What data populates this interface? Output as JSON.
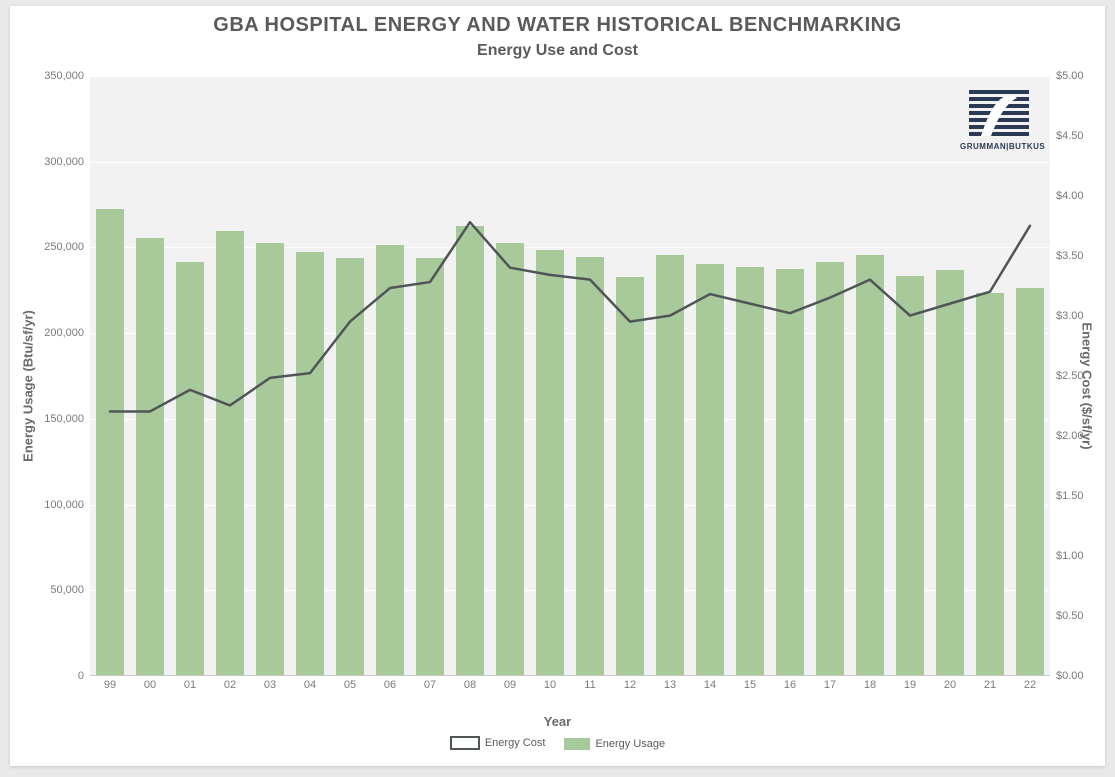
{
  "chart": {
    "type": "bar+line",
    "title": "GBA HOSPITAL ENERGY AND WATER HISTORICAL BENCHMARKING",
    "subtitle": "Energy Use and Cost",
    "title_fontsize": 20,
    "subtitle_fontsize": 16,
    "title_color": "#5a5a5a",
    "plot_background": "#f2f2f2",
    "page_background": "#ffffff",
    "grid_color": "#ffffff",
    "axis_label_color": "#7a7a7a",
    "axis_title_color": "#6a6a6a",
    "axis_label_fontsize": 11,
    "axis_title_fontsize": 13,
    "categories": [
      "99",
      "00",
      "01",
      "02",
      "03",
      "04",
      "05",
      "06",
      "07",
      "08",
      "09",
      "10",
      "11",
      "12",
      "13",
      "14",
      "15",
      "16",
      "17",
      "18",
      "19",
      "20",
      "21",
      "22"
    ],
    "bars": {
      "label": "Energy Usage",
      "color": "#a8c99a",
      "values": [
        272000,
        255000,
        241000,
        259000,
        252000,
        247000,
        243000,
        251000,
        243000,
        262000,
        252000,
        248000,
        244000,
        232000,
        245000,
        240000,
        238000,
        237000,
        241000,
        245000,
        233000,
        236000,
        223000,
        226000
      ],
      "bar_width_fraction": 0.72
    },
    "line": {
      "label": "Energy Cost",
      "color": "#505558",
      "stroke_width": 2.5,
      "values": [
        2.2,
        2.2,
        2.38,
        2.25,
        2.48,
        2.52,
        2.95,
        3.23,
        3.28,
        3.78,
        3.4,
        3.34,
        3.3,
        2.95,
        3.0,
        3.18,
        3.1,
        3.02,
        3.15,
        3.3,
        3.0,
        3.1,
        3.2,
        3.75
      ]
    },
    "y_left": {
      "title": "Energy Usage (Btu/sf/yr)",
      "min": 0,
      "max": 350000,
      "ticks": [
        0,
        50000,
        100000,
        150000,
        200000,
        250000,
        300000,
        350000
      ],
      "tick_labels": [
        "0",
        "50,000",
        "100,000",
        "150,000",
        "200,000",
        "250,000",
        "300,000",
        "350,000"
      ]
    },
    "y_right": {
      "title": "Energy Cost ($/sf/yr)",
      "min": 0,
      "max": 5.0,
      "ticks": [
        0,
        0.5,
        1.0,
        1.5,
        2.0,
        2.5,
        3.0,
        3.5,
        4.0,
        4.5,
        5.0
      ],
      "tick_labels": [
        "$0.00",
        "$0.50",
        "$1.00",
        "$1.50",
        "$2.00",
        "$2.50",
        "$3.00",
        "$3.50",
        "$4.00",
        "$4.50",
        "$5.00"
      ]
    },
    "x_axis": {
      "title": "Year"
    },
    "legend": {
      "items": [
        {
          "type": "line",
          "label": "Energy Cost"
        },
        {
          "type": "bar",
          "label": "Energy Usage"
        }
      ]
    },
    "logo": {
      "text": "GRUMMAN|BUTKUS",
      "color": "#2a3a55"
    }
  }
}
